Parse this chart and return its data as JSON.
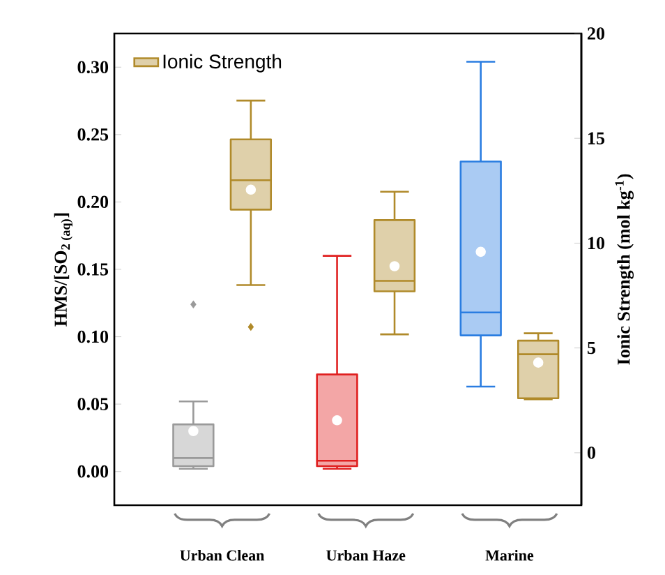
{
  "chart_data": {
    "type": "box",
    "ylabel": "HMS/[SO$_{2 (aq)}$]",
    "y2label": "Ionic Strength (mol kg$^{-1}$)",
    "categories": [
      "Urban Clean",
      "Urban Haze",
      "Marine"
    ],
    "ylim": [
      -0.025,
      0.325
    ],
    "yticks": [
      {
        "value": 0,
        "label": "0.00"
      },
      {
        "value": 0.05,
        "label": "0.05"
      },
      {
        "value": 0.1,
        "label": "0.10"
      },
      {
        "value": 0.15,
        "label": "0.15"
      },
      {
        "value": 0.2,
        "label": "0.20"
      },
      {
        "value": 0.25,
        "label": "0.25"
      },
      {
        "value": 0.3,
        "label": "0.30"
      }
    ],
    "y2lim": [
      -2.5,
      20
    ],
    "y2ticks": [
      0,
      5,
      10,
      15,
      20
    ],
    "legend": "top left",
    "series": [
      {
        "colors": [
          "#9a9a9a",
          "#e02020",
          "#2a7de1"
        ],
        "boxes": [
          {
            "low": 0.002,
            "q1": 0.004,
            "median": 0.01,
            "q3": 0.035,
            "high": 0.052,
            "mean": 0.03,
            "outliers": [
              0.124
            ]
          },
          {
            "low": 0.002,
            "q1": 0.004,
            "median": 0.008,
            "q3": 0.072,
            "high": 0.16,
            "mean": 0.038
          },
          {
            "low": 0.063,
            "q1": 0.101,
            "median": 0.118,
            "q3": 0.23,
            "high": 0.304,
            "mean": 0.163
          }
        ]
      },
      {
        "name": "Ionic Strength",
        "color": "#b08a2a",
        "axis": "y2",
        "boxes": [
          {
            "low": 8.0,
            "q1": 11.6,
            "median": 13.0,
            "q3": 14.95,
            "high": 16.8,
            "mean": 12.55,
            "outliers": [
              6.0
            ]
          },
          {
            "low": 5.65,
            "q1": 7.7,
            "median": 8.2,
            "q3": 11.1,
            "high": 12.45,
            "mean": 8.9
          },
          {
            "low": 2.55,
            "q1": 2.6,
            "median": 4.7,
            "q3": 5.35,
            "high": 5.7,
            "mean": 4.3
          }
        ]
      }
    ]
  }
}
